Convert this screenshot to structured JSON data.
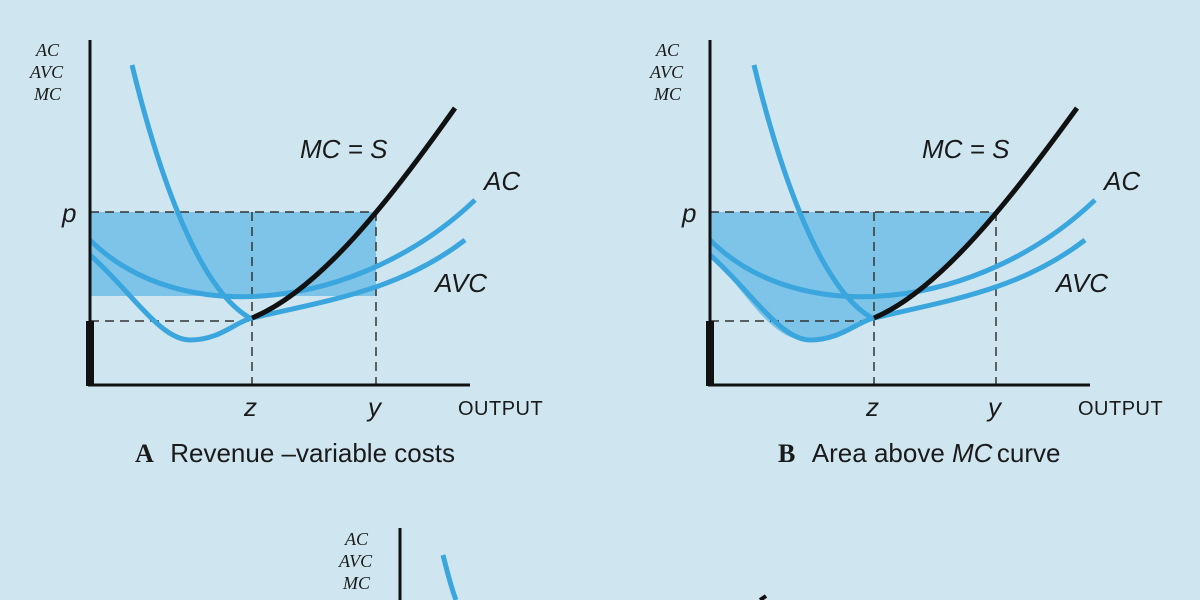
{
  "colors": {
    "background": "#cfe6f1",
    "curve_blue": "#3aa6dd",
    "shade_blue": "#6fbde6",
    "axis_black": "#111111",
    "dash": "#333333"
  },
  "panels": [
    {
      "id": "A",
      "y_axis_label": [
        "AC",
        "AVC",
        "MC"
      ],
      "labels": {
        "mc": "MC = S",
        "ac": "AC",
        "avc": "AVC",
        "p": "p",
        "z": "z",
        "y": "y",
        "output": "OUTPUT"
      },
      "caption": {
        "letter": "A",
        "text": "Revenue –variable costs",
        "pre": "",
        "ital": "",
        "post": ""
      }
    },
    {
      "id": "B",
      "y_axis_label": [
        "AC",
        "AVC",
        "MC"
      ],
      "labels": {
        "mc": "MC = S",
        "ac": "AC",
        "avc": "AVC",
        "p": "p",
        "z": "z",
        "y": "y",
        "output": "OUTPUT"
      },
      "caption": {
        "letter": "B",
        "pre": "Area above ",
        "ital": "MC",
        "post": " curve"
      }
    },
    {
      "id": "C",
      "y_axis_label": [
        "AC",
        "AVC",
        "MC"
      ]
    }
  ]
}
